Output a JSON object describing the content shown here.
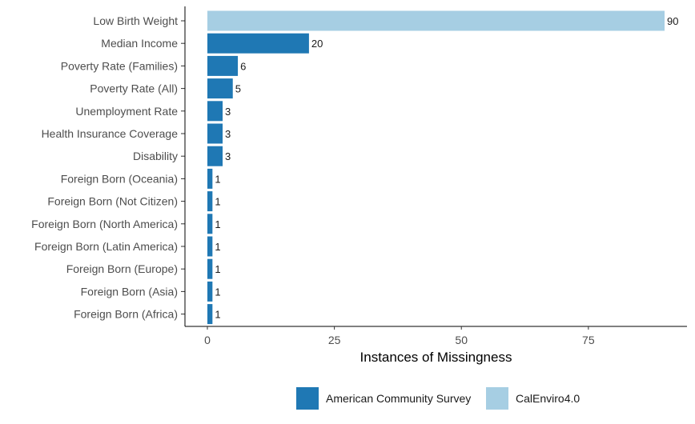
{
  "chart_data": {
    "type": "bar",
    "orientation": "horizontal",
    "title": "",
    "xlabel": "Instances of Missingness",
    "ylabel": "",
    "xlim": [
      0,
      95
    ],
    "xticks": [
      0,
      25,
      50,
      75
    ],
    "grid": false,
    "legend_position": "bottom",
    "categories": [
      "Low Birth Weight",
      "Median Income",
      "Poverty Rate (Families)",
      "Poverty Rate (All)",
      "Unemployment Rate",
      "Health Insurance Coverage",
      "Disability",
      "Foreign Born (Oceania)",
      "Foreign Born (Not Citizen)",
      "Foreign Born (North America)",
      "Foreign Born (Latin America)",
      "Foreign Born (Europe)",
      "Foreign Born (Asia)",
      "Foreign Born (Africa)"
    ],
    "values": [
      90,
      20,
      6,
      5,
      3,
      3,
      3,
      1,
      1,
      1,
      1,
      1,
      1,
      1
    ],
    "source_series": [
      "CalEnviro4.0",
      "American Community Survey",
      "American Community Survey",
      "American Community Survey",
      "American Community Survey",
      "American Community Survey",
      "American Community Survey",
      "American Community Survey",
      "American Community Survey",
      "American Community Survey",
      "American Community Survey",
      "American Community Survey",
      "American Community Survey",
      "American Community Survey"
    ],
    "series": [
      {
        "name": "American Community Survey",
        "color": "#1f78b4"
      },
      {
        "name": "CalEnviro4.0",
        "color": "#a6cee3"
      }
    ]
  }
}
